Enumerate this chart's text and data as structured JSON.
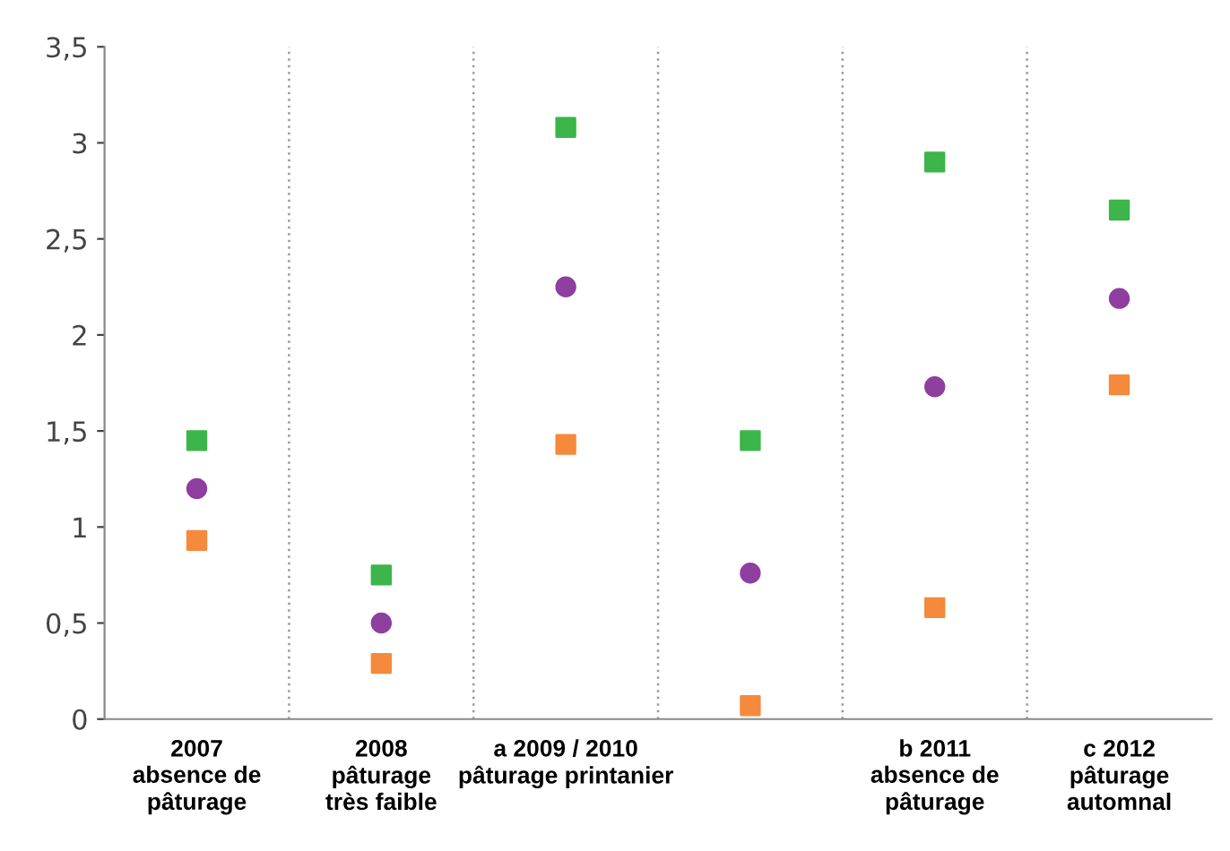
{
  "chart_data": {
    "type": "scatter",
    "categories": [
      "2007\nabsence de\npâturage",
      "2008\npâturage\ntrès faible",
      "a 2009 / 2010\npâturage printanier",
      null,
      "b 2011\nabsence de\npâturage",
      "c 2012\npâturage\nautomnal"
    ],
    "series": [
      {
        "color": "#3cb54a",
        "marker": "square",
        "values": [
          1.45,
          0.75,
          3.08,
          1.45,
          2.9,
          2.65
        ]
      },
      {
        "color": "#8e3fa0",
        "marker": "circle",
        "values": [
          1.2,
          0.5,
          2.25,
          0.76,
          1.73,
          2.19
        ]
      },
      {
        "color": "#f58a3c",
        "marker": "square",
        "values": [
          0.93,
          0.29,
          1.43,
          0.07,
          0.58,
          1.74
        ]
      }
    ],
    "ylim": [
      0,
      3.5
    ],
    "yticks": [
      {
        "value": 0,
        "label": "0"
      },
      {
        "value": 0.5,
        "label": "0,5"
      },
      {
        "value": 1,
        "label": "1"
      },
      {
        "value": 1.5,
        "label": "1,5"
      },
      {
        "value": 2,
        "label": "2"
      },
      {
        "value": 2.5,
        "label": "2,5"
      },
      {
        "value": 3,
        "label": "3"
      },
      {
        "value": 3.5,
        "label": "3,5"
      }
    ],
    "grid": "x"
  }
}
